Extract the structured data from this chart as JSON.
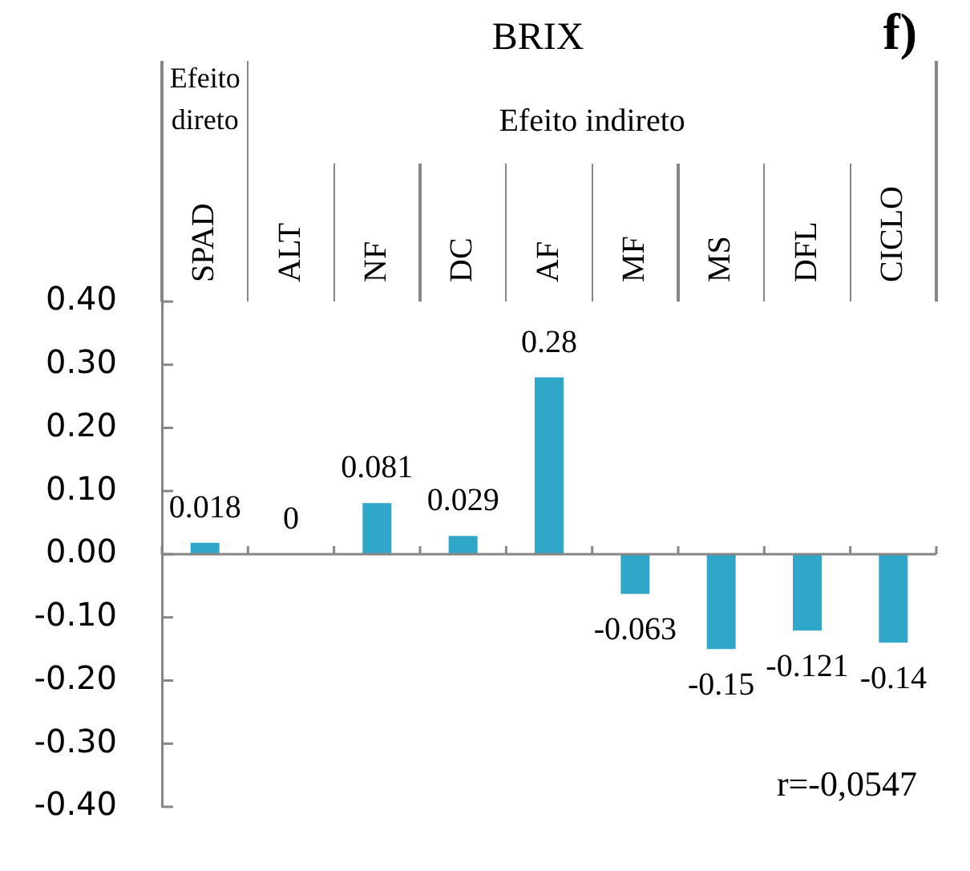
{
  "chart_data": {
    "type": "bar",
    "title": "BRIX",
    "categories": [
      "SPAD",
      "ALT",
      "NF",
      "DC",
      "AF",
      "MF",
      "MS",
      "DFL",
      "CICLO"
    ],
    "values": [
      0.018,
      0,
      0.081,
      0.029,
      0.28,
      -0.063,
      -0.15,
      -0.121,
      -0.14
    ],
    "color": "#30a6c8",
    "ylim": [
      -0.4,
      0.4
    ],
    "yticks": [
      {
        "value": -0.4,
        "label": "-0.40"
      },
      {
        "value": -0.3,
        "label": "-0.30"
      },
      {
        "value": -0.2,
        "label": "-0.20"
      },
      {
        "value": -0.1,
        "label": "-0.10"
      },
      {
        "value": 0,
        "label": "0.00"
      },
      {
        "value": 0.1,
        "label": "0.10"
      },
      {
        "value": 0.2,
        "label": "0.20"
      },
      {
        "value": 0.3,
        "label": "0.30"
      },
      {
        "value": 0.4,
        "label": "0.40"
      }
    ],
    "data_labels": true,
    "annotations": [
      "Efeito direto",
      "Efeito indireto",
      "r=-0,0547",
      "f)"
    ]
  }
}
